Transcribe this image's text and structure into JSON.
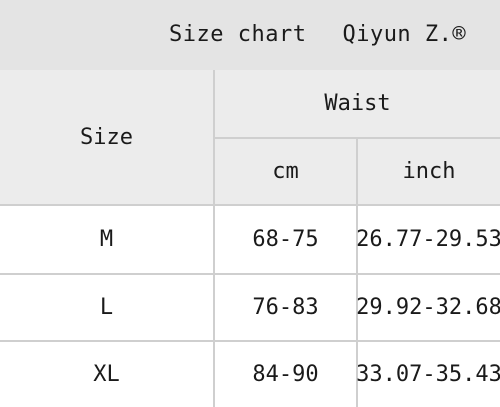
{
  "title": {
    "label": "Size chart",
    "brand": "Qiyun Z.®"
  },
  "table": {
    "size_header": "Size",
    "waist_header": "Waist",
    "cm_header": "cm",
    "inch_header": "inch",
    "rows": [
      {
        "size": "M",
        "cm": "68-75",
        "inch": "26.77-29.53"
      },
      {
        "size": "L",
        "cm": "76-83",
        "inch": "29.92-32.68"
      },
      {
        "size": "XL",
        "cm": "84-90",
        "inch": "33.07-35.43"
      }
    ]
  },
  "colors": {
    "header_bg": "#ececec",
    "title_bg": "#e4e4e4",
    "border": "#cfcfcf",
    "text": "#1a1a1a"
  }
}
